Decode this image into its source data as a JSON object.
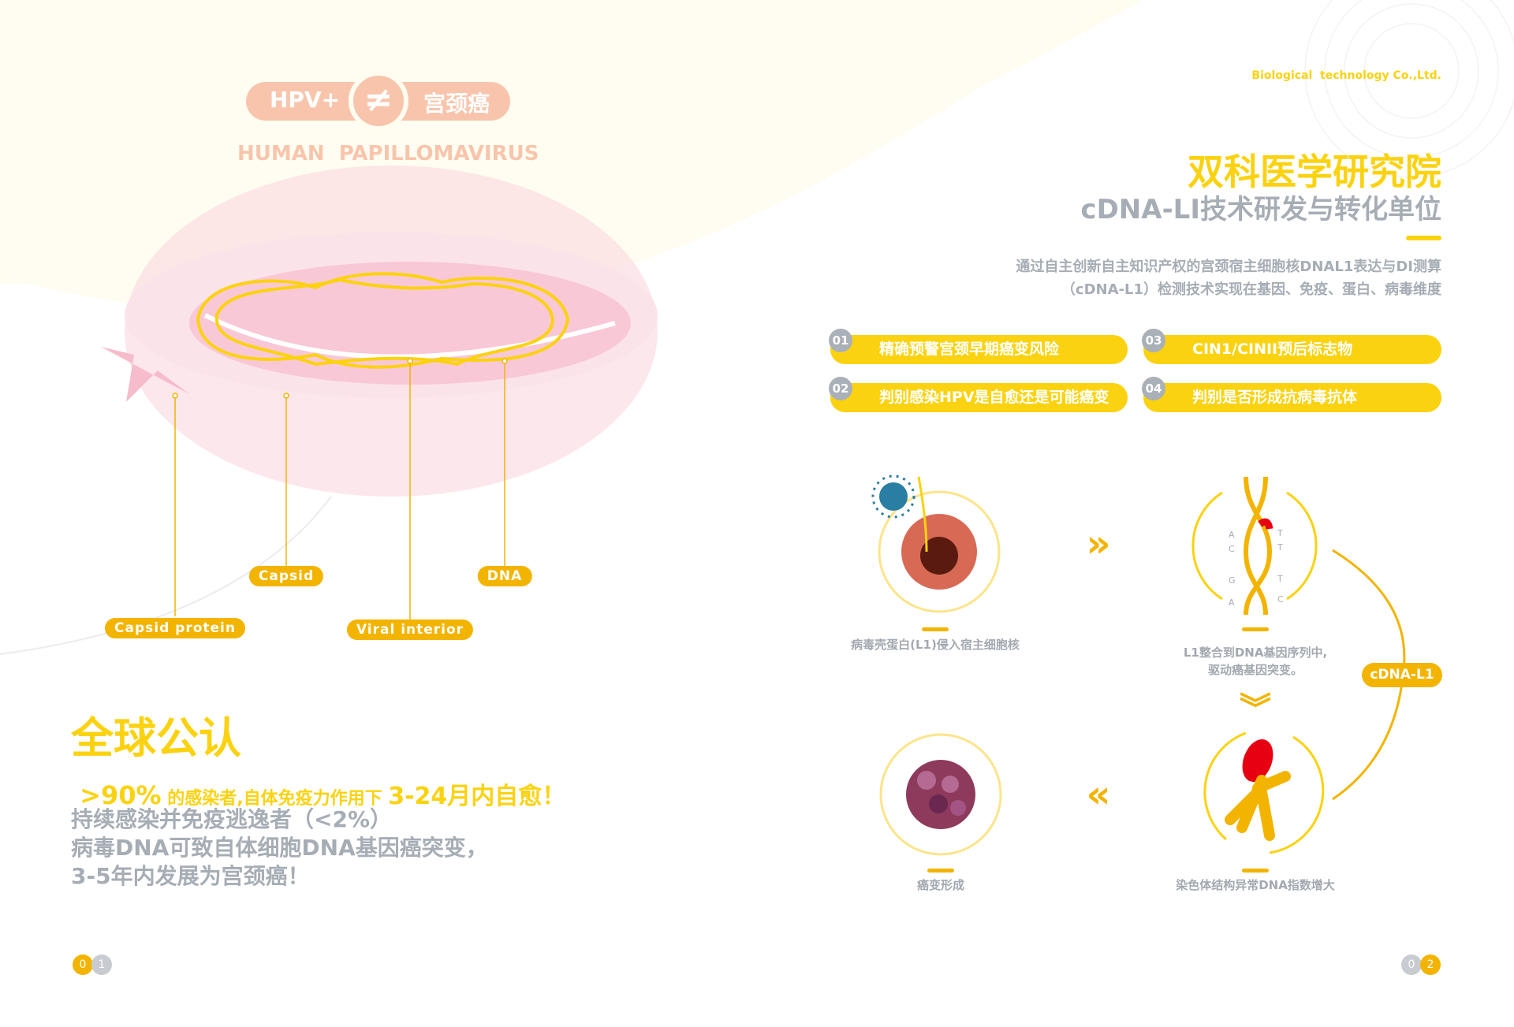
{
  "colors": {
    "accent": "#fbd20f",
    "orange": "#f3b400",
    "peach": "#f8c5ac",
    "gray": "#a6adb5",
    "red": "#e60012"
  },
  "left": {
    "hero": {
      "left": "HPV+",
      "sign": "≠",
      "right": "宫颈癌",
      "subtitle": "HUMAN  PAPILLOMAVIRUS"
    },
    "labels": {
      "capsid": "Capsid",
      "dna": "DNA",
      "capsid_protein": "Capsid  protein",
      "viral_interior": "Viral  interior"
    },
    "headline": "全球公认",
    "stat": {
      "pct": ">90%",
      "mid": " 的感染者,自体免疫力作用下 ",
      "range": "3-24月内自愈！"
    },
    "body": [
      "持续感染并免疫逃逸者（<2%）",
      "病毒DNA可致自体细胞DNA基因癌突变，",
      "3-5年内发展为宫颈癌！"
    ],
    "page": [
      "0",
      "1"
    ]
  },
  "right": {
    "company": "Biological  technology Co.,Ltd.",
    "title": "双科医学研究院",
    "subtitle": "cDNA-LI技术研发与转化单位",
    "intro": [
      "通过自主创新自主知识产权的宫颈宿主细胞核DNAL1表达与DI测算",
      "（cDNA-L1）检测技术实现在基因、免疫、蛋白、病毒维度"
    ],
    "features": [
      {
        "num": "01",
        "text": "精确预警宫颈早期癌变风险"
      },
      {
        "num": "02",
        "text": "判别感染HPV是自愈还是可能癌变"
      },
      {
        "num": "03",
        "text": "CIN1/CINII预后标志物"
      },
      {
        "num": "04",
        "text": "判别是否形成抗病毒抗体"
      }
    ],
    "steps": {
      "s1": "病毒壳蛋白(L1)侵入宿主细胞核",
      "s2": [
        "L1整合到DNA基因序列中,",
        "驱动癌基因突变。"
      ],
      "s3": "染色体结构异常DNA指数增大",
      "s4": "癌变形成"
    },
    "bases": {
      "left": [
        "A",
        "C",
        "G",
        "A"
      ],
      "right": [
        "T",
        "T",
        "T",
        "C"
      ]
    },
    "badge": "cDNA-L1",
    "chevrons": {
      "right": "»",
      "down": "︾",
      "left": "«"
    },
    "page": [
      "0",
      "2"
    ]
  }
}
